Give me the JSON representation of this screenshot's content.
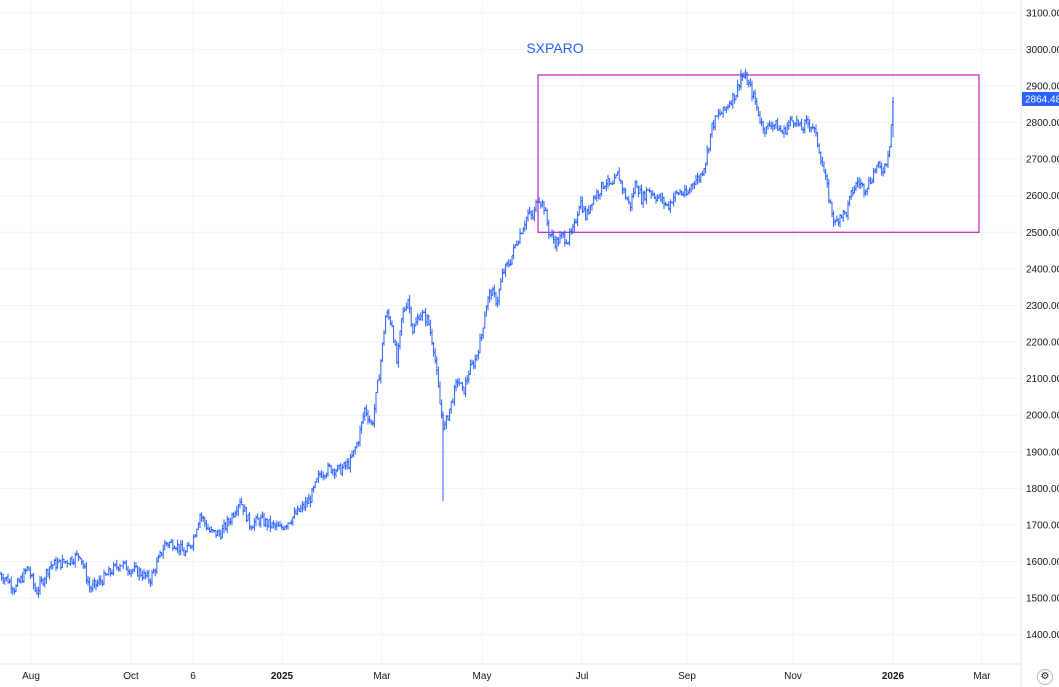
{
  "chart_data": {
    "type": "candlestick",
    "title": "SXPARO",
    "y_ticks": [
      "1400.00",
      "1500.00",
      "1600.00",
      "1700.00",
      "1800.00",
      "1900.00",
      "2000.00",
      "2100.00",
      "2200.00",
      "2300.00",
      "2400.00",
      "2500.00",
      "2600.00",
      "2700.00",
      "2800.00",
      "2900.00",
      "3000.00",
      "3100.00"
    ],
    "ylim": [
      1320,
      3135
    ],
    "x_ticks": [
      "Aug",
      "Oct",
      "6",
      "2025",
      "Mar",
      "May",
      "Jul",
      "Sep",
      "Nov",
      "2026",
      "Mar"
    ],
    "last_price": "2864.48",
    "series_color": "#2962ff",
    "rectangle": {
      "y_low": 2500,
      "y_high": 2930,
      "color": "#c22fcf"
    },
    "close_path": [
      [
        0,
        1565
      ],
      [
        8,
        1550
      ],
      [
        15,
        1525
      ],
      [
        22,
        1555
      ],
      [
        28,
        1585
      ],
      [
        36,
        1515
      ],
      [
        42,
        1545
      ],
      [
        50,
        1590
      ],
      [
        60,
        1595
      ],
      [
        70,
        1605
      ],
      [
        80,
        1620
      ],
      [
        90,
        1525
      ],
      [
        100,
        1545
      ],
      [
        110,
        1570
      ],
      [
        120,
        1595
      ],
      [
        130,
        1580
      ],
      [
        140,
        1570
      ],
      [
        150,
        1550
      ],
      [
        158,
        1600
      ],
      [
        165,
        1650
      ],
      [
        175,
        1650
      ],
      [
        185,
        1620
      ],
      [
        193,
        1660
      ],
      [
        200,
        1730
      ],
      [
        210,
        1680
      ],
      [
        220,
        1675
      ],
      [
        230,
        1715
      ],
      [
        240,
        1770
      ],
      [
        250,
        1700
      ],
      [
        260,
        1715
      ],
      [
        270,
        1700
      ],
      [
        280,
        1690
      ],
      [
        290,
        1715
      ],
      [
        300,
        1740
      ],
      [
        310,
        1770
      ],
      [
        320,
        1840
      ],
      [
        330,
        1855
      ],
      [
        340,
        1850
      ],
      [
        350,
        1870
      ],
      [
        358,
        1930
      ],
      [
        365,
        2020
      ],
      [
        372,
        1970
      ],
      [
        380,
        2130
      ],
      [
        386,
        2280
      ],
      [
        392,
        2250
      ],
      [
        397,
        2140
      ],
      [
        402,
        2270
      ],
      [
        408,
        2320
      ],
      [
        413,
        2230
      ],
      [
        420,
        2280
      ],
      [
        428,
        2260
      ],
      [
        434,
        2180
      ],
      [
        440,
        2030
      ],
      [
        444,
        1960
      ],
      [
        448,
        2000
      ],
      [
        452,
        2040
      ],
      [
        458,
        2100
      ],
      [
        463,
        2060
      ],
      [
        469,
        2120
      ],
      [
        475,
        2150
      ],
      [
        481,
        2210
      ],
      [
        486,
        2300
      ],
      [
        491,
        2340
      ],
      [
        497,
        2310
      ],
      [
        503,
        2390
      ],
      [
        510,
        2420
      ],
      [
        516,
        2470
      ],
      [
        522,
        2510
      ],
      [
        528,
        2550
      ],
      [
        533,
        2540
      ],
      [
        538,
        2600
      ],
      [
        544,
        2570
      ],
      [
        549,
        2500
      ],
      [
        556,
        2470
      ],
      [
        562,
        2490
      ],
      [
        568,
        2480
      ],
      [
        574,
        2510
      ],
      [
        580,
        2590
      ],
      [
        586,
        2540
      ],
      [
        592,
        2590
      ],
      [
        598,
        2610
      ],
      [
        606,
        2640
      ],
      [
        612,
        2620
      ],
      [
        618,
        2660
      ],
      [
        624,
        2610
      ],
      [
        630,
        2570
      ],
      [
        636,
        2640
      ],
      [
        642,
        2590
      ],
      [
        648,
        2620
      ],
      [
        655,
        2600
      ],
      [
        661,
        2590
      ],
      [
        668,
        2570
      ],
      [
        674,
        2600
      ],
      [
        680,
        2610
      ],
      [
        687,
        2600
      ],
      [
        693,
        2640
      ],
      [
        700,
        2650
      ],
      [
        706,
        2700
      ],
      [
        712,
        2790
      ],
      [
        718,
        2820
      ],
      [
        724,
        2830
      ],
      [
        730,
        2860
      ],
      [
        736,
        2880
      ],
      [
        741,
        2930
      ],
      [
        746,
        2920
      ],
      [
        751,
        2890
      ],
      [
        756,
        2850
      ],
      [
        761,
        2800
      ],
      [
        766,
        2780
      ],
      [
        771,
        2800
      ],
      [
        777,
        2790
      ],
      [
        783,
        2770
      ],
      [
        789,
        2800
      ],
      [
        795,
        2810
      ],
      [
        801,
        2780
      ],
      [
        807,
        2800
      ],
      [
        813,
        2790
      ],
      [
        819,
        2730
      ],
      [
        825,
        2650
      ],
      [
        830,
        2580
      ],
      [
        835,
        2520
      ],
      [
        840,
        2550
      ],
      [
        846,
        2550
      ],
      [
        852,
        2610
      ],
      [
        858,
        2640
      ],
      [
        864,
        2620
      ],
      [
        870,
        2640
      ],
      [
        876,
        2680
      ],
      [
        882,
        2670
      ],
      [
        886,
        2690
      ],
      [
        890,
        2750
      ],
      [
        893,
        2864
      ]
    ]
  },
  "ui": {
    "settings_icon": "⚙"
  }
}
